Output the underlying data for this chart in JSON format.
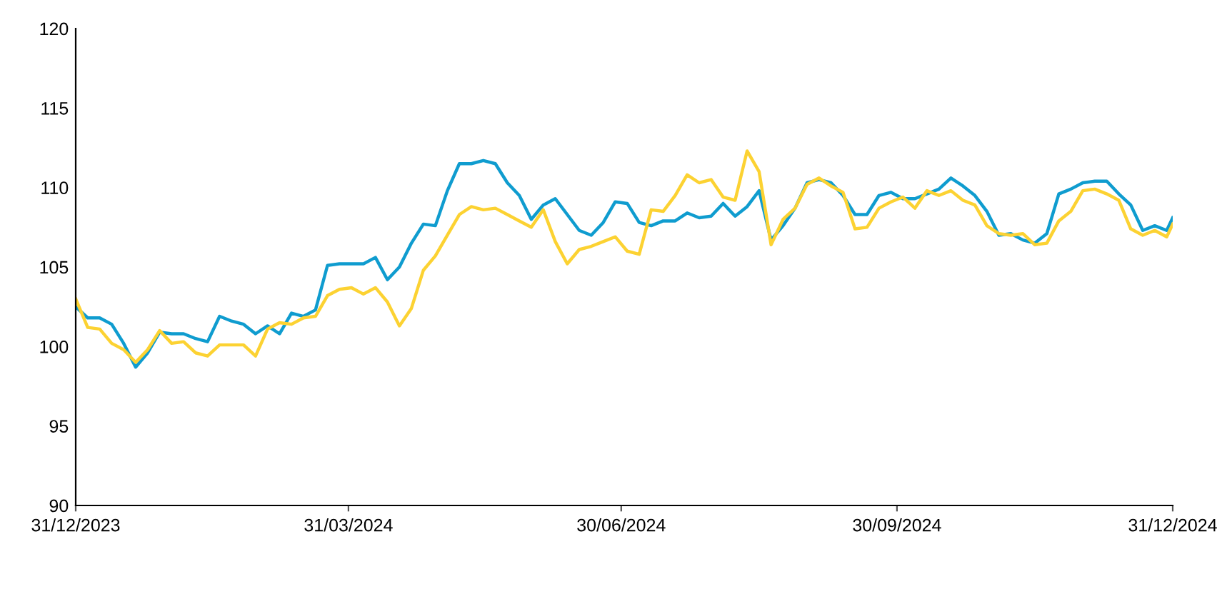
{
  "chart_data": {
    "type": "line",
    "x": [
      "2023-12-31",
      "2024-01-04",
      "2024-01-08",
      "2024-01-12",
      "2024-01-16",
      "2024-01-20",
      "2024-01-24",
      "2024-01-28",
      "2024-02-01",
      "2024-02-05",
      "2024-02-09",
      "2024-02-13",
      "2024-02-17",
      "2024-02-21",
      "2024-02-25",
      "2024-02-29",
      "2024-03-04",
      "2024-03-08",
      "2024-03-12",
      "2024-03-16",
      "2024-03-20",
      "2024-03-24",
      "2024-03-28",
      "2024-04-01",
      "2024-04-05",
      "2024-04-09",
      "2024-04-13",
      "2024-04-17",
      "2024-04-21",
      "2024-04-25",
      "2024-04-29",
      "2024-05-03",
      "2024-05-07",
      "2024-05-11",
      "2024-05-15",
      "2024-05-19",
      "2024-05-23",
      "2024-05-27",
      "2024-05-31",
      "2024-06-04",
      "2024-06-08",
      "2024-06-12",
      "2024-06-16",
      "2024-06-20",
      "2024-06-24",
      "2024-06-28",
      "2024-07-02",
      "2024-07-06",
      "2024-07-10",
      "2024-07-14",
      "2024-07-18",
      "2024-07-22",
      "2024-07-26",
      "2024-07-30",
      "2024-08-03",
      "2024-08-07",
      "2024-08-11",
      "2024-08-15",
      "2024-08-19",
      "2024-08-23",
      "2024-08-27",
      "2024-08-31",
      "2024-09-04",
      "2024-09-08",
      "2024-09-12",
      "2024-09-16",
      "2024-09-20",
      "2024-09-24",
      "2024-09-28",
      "2024-10-02",
      "2024-10-06",
      "2024-10-10",
      "2024-10-14",
      "2024-10-18",
      "2024-10-22",
      "2024-10-26",
      "2024-10-30",
      "2024-11-03",
      "2024-11-07",
      "2024-11-11",
      "2024-11-15",
      "2024-11-19",
      "2024-11-23",
      "2024-11-27",
      "2024-12-01",
      "2024-12-05",
      "2024-12-09",
      "2024-12-13",
      "2024-12-17",
      "2024-12-21",
      "2024-12-25",
      "2024-12-29",
      "2024-12-31"
    ],
    "series": [
      {
        "color": "#0f9ccf",
        "values": [
          102.5,
          101.8,
          101.8,
          101.4,
          100.2,
          98.7,
          99.6,
          100.9,
          100.8,
          100.8,
          100.5,
          100.3,
          101.9,
          101.6,
          101.4,
          100.8,
          101.3,
          100.8,
          102.1,
          101.9,
          102.3,
          105.1,
          105.2,
          105.2,
          105.2,
          105.6,
          104.2,
          105.0,
          106.5,
          107.7,
          107.6,
          109.8,
          111.5,
          111.5,
          111.7,
          111.5,
          110.3,
          109.5,
          108.0,
          108.9,
          109.3,
          108.3,
          107.3,
          107.0,
          107.8,
          109.1,
          109.0,
          107.8,
          107.6,
          107.9,
          107.9,
          108.4,
          108.1,
          108.2,
          109.0,
          108.2,
          108.8,
          109.8,
          106.7,
          107.6,
          108.7,
          110.3,
          110.5,
          110.3,
          109.5,
          108.3,
          108.3,
          109.5,
          109.7,
          109.3,
          109.3,
          109.6,
          109.9,
          110.6,
          110.1,
          109.5,
          108.5,
          107.0,
          107.1,
          106.7,
          106.5,
          107.1,
          109.6,
          109.9,
          110.3,
          110.4,
          110.4,
          109.6,
          108.9,
          107.3,
          107.6,
          107.3,
          108.1
        ]
      },
      {
        "color": "#fcd232",
        "values": [
          103.0,
          101.2,
          101.1,
          100.2,
          99.8,
          99.0,
          99.8,
          101.0,
          100.2,
          100.3,
          99.6,
          99.4,
          100.1,
          100.1,
          100.1,
          99.4,
          101.1,
          101.5,
          101.4,
          101.8,
          101.9,
          103.2,
          103.6,
          103.7,
          103.3,
          103.7,
          102.8,
          101.3,
          102.4,
          104.8,
          105.7,
          107.0,
          108.3,
          108.8,
          108.6,
          108.7,
          108.3,
          107.9,
          107.5,
          108.6,
          106.6,
          105.2,
          106.1,
          106.3,
          106.6,
          106.9,
          106.0,
          105.8,
          108.6,
          108.5,
          109.5,
          110.8,
          110.3,
          110.5,
          109.4,
          109.2,
          112.3,
          111.0,
          106.4,
          108.0,
          108.7,
          110.2,
          110.6,
          110.1,
          109.7,
          107.4,
          107.5,
          108.7,
          109.1,
          109.4,
          108.7,
          109.8,
          109.5,
          109.8,
          109.2,
          108.9,
          107.6,
          107.1,
          107.0,
          107.1,
          106.4,
          106.5,
          107.9,
          108.5,
          109.8,
          109.9,
          109.6,
          109.2,
          107.4,
          107.0,
          107.3,
          106.9,
          107.7
        ]
      }
    ],
    "xlim": [
      "2023-12-31",
      "2024-12-31"
    ],
    "xticks": [
      {
        "value": "2023-12-31",
        "label": "31/12/2023"
      },
      {
        "value": "2024-03-31",
        "label": "31/03/2024"
      },
      {
        "value": "2024-06-30",
        "label": "30/06/2024"
      },
      {
        "value": "2024-09-30",
        "label": "30/09/2024"
      },
      {
        "value": "2024-12-31",
        "label": "31/12/2024"
      }
    ],
    "ylim": [
      90,
      120
    ],
    "yticks": [
      90,
      95,
      100,
      105,
      110,
      115,
      120
    ],
    "grid": false,
    "marker": "none",
    "line_style": "solid"
  }
}
